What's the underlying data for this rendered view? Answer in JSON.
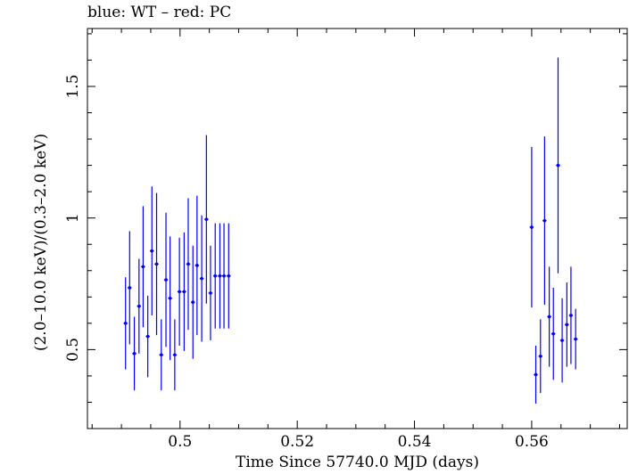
{
  "chart_data": {
    "type": "scatter",
    "title": "blue: WT – red: PC",
    "xlabel": "Time Since 57740.0 MJD (days)",
    "ylabel": "(2.0–10.0 keV)/(0.3–2.0 keV)",
    "xlim": [
      0.4842,
      0.5763
    ],
    "ylim": [
      0.2,
      1.72
    ],
    "x_ticks": [
      0.5,
      0.52,
      0.54,
      0.56
    ],
    "x_tick_labels": [
      "0.5",
      "0.52",
      "0.54",
      "0.56"
    ],
    "y_ticks": [
      0.5,
      1,
      1.5
    ],
    "y_tick_labels": [
      "0.5",
      "1",
      "1.5"
    ],
    "grid": false,
    "series": [
      {
        "name": "WT",
        "color": "#0000ff",
        "x": [
          0.4907,
          0.4914,
          0.4922,
          0.493,
          0.4937,
          0.4945,
          0.4952,
          0.496,
          0.4968,
          0.4976,
          0.4983,
          0.4991,
          0.4999,
          0.5007,
          0.5014,
          0.5022,
          0.5029,
          0.5037,
          0.5045,
          0.5052,
          0.506,
          0.5068,
          0.5075,
          0.5083
        ],
        "y": [
          0.6,
          0.735,
          0.485,
          0.665,
          0.815,
          0.55,
          0.875,
          0.825,
          0.48,
          0.765,
          0.695,
          0.48,
          0.72,
          0.72,
          0.825,
          0.68,
          0.82,
          0.77,
          0.995,
          0.715,
          0.78,
          0.78,
          0.78,
          0.78
        ],
        "yerr": [
          0.175,
          0.215,
          0.14,
          0.18,
          0.23,
          0.155,
          0.245,
          0.27,
          0.135,
          0.255,
          0.235,
          0.135,
          0.205,
          0.225,
          0.25,
          0.215,
          0.265,
          0.24,
          0.32,
          0.18,
          0.2,
          0.2,
          0.2,
          0.2
        ]
      },
      {
        "name": "WT",
        "color": "#0000ff",
        "x": [
          0.56,
          0.5607,
          0.5615,
          0.5622,
          0.563,
          0.5637,
          0.5645,
          0.5652,
          0.566,
          0.5667,
          0.5675
        ],
        "y": [
          0.965,
          0.405,
          0.475,
          0.99,
          0.625,
          0.56,
          1.2,
          0.535,
          0.595,
          0.63,
          0.54
        ],
        "yerr": [
          0.305,
          0.11,
          0.14,
          0.32,
          0.19,
          0.175,
          0.41,
          0.16,
          0.16,
          0.185,
          0.115
        ]
      }
    ],
    "xerr_half_width": 0.00034
  }
}
